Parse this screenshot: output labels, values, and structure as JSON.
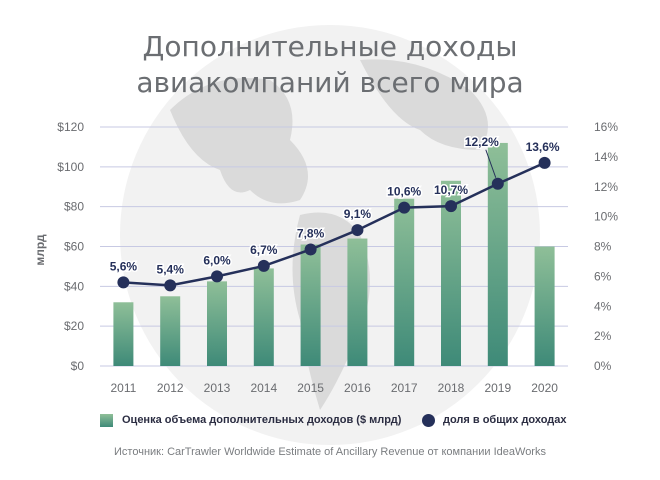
{
  "title_lines": [
    "Дополнительные доходы",
    "авиакомпаний всего мира"
  ],
  "source": "Источник: CarTrawler Worldwide Estimate of Ancillary Revenue от компании IdeaWorks",
  "colors": {
    "bar_top": "#8fbf98",
    "bar_bottom": "#3e8a78",
    "line": "#25305a",
    "grid": "#c7c9e3",
    "axis_text": "#6a6c70"
  },
  "chart_data": {
    "type": "bar",
    "categories": [
      "2011",
      "2012",
      "2013",
      "2014",
      "2015",
      "2016",
      "2017",
      "2018",
      "2019",
      "2020"
    ],
    "series": [
      {
        "name": "Оценка объема дополнительных доходов ($ млрд)",
        "type": "bar",
        "axis": "left",
        "values": [
          32,
          35,
          42.5,
          49,
          61,
          64,
          84,
          93,
          112,
          60
        ]
      },
      {
        "name": "доля в общих доходах",
        "type": "line",
        "axis": "right",
        "values": [
          5.6,
          5.4,
          6.0,
          6.7,
          7.8,
          9.1,
          10.6,
          10.7,
          12.2,
          13.6
        ],
        "labels": [
          "5,6%",
          "5,4%",
          "6,0%",
          "6,7%",
          "7,8%",
          "9,1%",
          "10,6%",
          "10,7%",
          "12,2%",
          "13,6%"
        ]
      }
    ],
    "ylabel": "млрд",
    "y_left": {
      "lim": [
        0,
        120
      ],
      "ticks": [
        0,
        20,
        40,
        60,
        80,
        100,
        120
      ],
      "tick_labels": [
        "$0",
        "$20",
        "$40",
        "$60",
        "$80",
        "$100",
        "$120"
      ]
    },
    "y_right": {
      "lim": [
        0,
        16
      ],
      "ticks": [
        0,
        2,
        4,
        6,
        8,
        10,
        12,
        14,
        16
      ],
      "tick_labels": [
        "0%",
        "2%",
        "4%",
        "6%",
        "8%",
        "10%",
        "12%",
        "14%",
        "16%"
      ]
    },
    "grid": true,
    "legend_position": "bottom"
  }
}
